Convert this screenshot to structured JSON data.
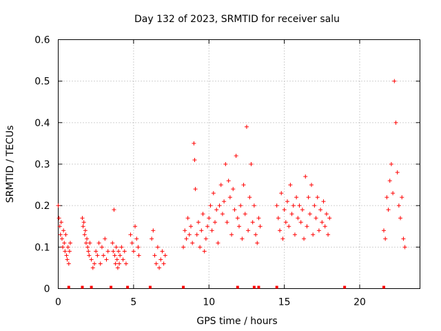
{
  "colors": {
    "series": "#ff0000",
    "grid": "#a0a0a0",
    "axis": "#000000"
  },
  "chart_data": {
    "type": "scatter",
    "title": "Day 132 of 2023, SRMTID for receiver salu",
    "xlabel": "GPS time / hours",
    "ylabel": "SRMTID / TECUs",
    "xlim": [
      0,
      24
    ],
    "ylim": [
      0,
      0.6
    ],
    "xticks": [
      0,
      5,
      10,
      15,
      20
    ],
    "xtick_labels": [
      "0",
      "5",
      "10",
      "15",
      "20"
    ],
    "yticks": [
      0,
      0.1,
      0.2,
      0.3,
      0.4,
      0.5,
      0.6
    ],
    "ytick_labels": [
      "0",
      "0.1",
      "0.2",
      "0.3",
      "0.4",
      "0.5",
      "0.6"
    ],
    "grid": true,
    "marker": "plus",
    "series": [
      {
        "name": "SRMTID",
        "x": [
          0.0,
          0.05,
          0.1,
          0.15,
          0.2,
          0.25,
          0.3,
          0.35,
          0.4,
          0.45,
          0.5,
          0.55,
          0.6,
          0.65,
          0.7,
          0.75,
          0.8,
          1.6,
          1.65,
          1.7,
          1.75,
          1.8,
          1.85,
          1.9,
          1.95,
          2.0,
          2.05,
          2.1,
          2.2,
          2.3,
          2.4,
          2.5,
          2.6,
          2.7,
          2.8,
          2.9,
          3.0,
          3.1,
          3.2,
          3.3,
          3.6,
          3.65,
          3.7,
          3.75,
          3.8,
          3.85,
          3.9,
          3.95,
          4.0,
          4.05,
          4.1,
          4.2,
          4.3,
          4.4,
          4.5,
          4.8,
          4.9,
          5.0,
          5.1,
          5.2,
          5.3,
          5.35,
          6.2,
          6.3,
          6.4,
          6.5,
          6.6,
          6.7,
          6.8,
          6.9,
          7.0,
          7.1,
          8.3,
          8.4,
          8.5,
          8.6,
          8.7,
          8.8,
          8.9,
          9.0,
          9.05,
          9.1,
          9.2,
          9.3,
          9.4,
          9.5,
          9.6,
          9.7,
          9.8,
          9.9,
          10.0,
          10.1,
          10.2,
          10.3,
          10.4,
          10.5,
          10.6,
          10.7,
          10.8,
          10.9,
          11.0,
          11.1,
          11.2,
          11.3,
          11.4,
          11.5,
          11.6,
          11.7,
          11.8,
          11.9,
          12.0,
          12.1,
          12.2,
          12.3,
          12.4,
          12.5,
          12.6,
          12.7,
          12.8,
          12.9,
          13.0,
          13.1,
          13.2,
          13.3,
          13.4,
          14.5,
          14.6,
          14.7,
          14.8,
          14.9,
          15.0,
          15.1,
          15.2,
          15.3,
          15.4,
          15.5,
          15.6,
          15.7,
          15.8,
          15.9,
          16.0,
          16.1,
          16.2,
          16.3,
          16.4,
          16.5,
          16.6,
          16.7,
          16.8,
          16.9,
          17.0,
          17.1,
          17.2,
          17.3,
          17.4,
          17.5,
          17.6,
          17.7,
          17.8,
          17.9,
          18.0,
          21.6,
          21.7,
          21.8,
          21.9,
          22.0,
          22.1,
          22.2,
          22.3,
          22.4,
          22.5,
          22.6,
          22.7,
          22.8,
          22.9,
          23.0
        ],
        "y": [
          0.2,
          0.17,
          0.15,
          0.13,
          0.16,
          0.12,
          0.1,
          0.14,
          0.11,
          0.09,
          0.13,
          0.08,
          0.07,
          0.1,
          0.06,
          0.09,
          0.11,
          0.17,
          0.15,
          0.16,
          0.13,
          0.14,
          0.11,
          0.12,
          0.1,
          0.09,
          0.08,
          0.11,
          0.07,
          0.05,
          0.06,
          0.09,
          0.08,
          0.11,
          0.06,
          0.1,
          0.08,
          0.12,
          0.07,
          0.09,
          0.11,
          0.09,
          0.19,
          0.08,
          0.06,
          0.1,
          0.07,
          0.05,
          0.09,
          0.06,
          0.08,
          0.1,
          0.07,
          0.09,
          0.06,
          0.13,
          0.11,
          0.09,
          0.15,
          0.12,
          0.1,
          0.08,
          0.12,
          0.14,
          0.08,
          0.06,
          0.1,
          0.05,
          0.07,
          0.09,
          0.06,
          0.08,
          0.1,
          0.14,
          0.12,
          0.17,
          0.13,
          0.15,
          0.11,
          0.35,
          0.31,
          0.24,
          0.13,
          0.16,
          0.1,
          0.14,
          0.18,
          0.09,
          0.12,
          0.15,
          0.17,
          0.2,
          0.14,
          0.23,
          0.16,
          0.19,
          0.11,
          0.2,
          0.25,
          0.18,
          0.21,
          0.3,
          0.16,
          0.26,
          0.22,
          0.13,
          0.24,
          0.19,
          0.32,
          0.17,
          0.15,
          0.2,
          0.12,
          0.25,
          0.18,
          0.39,
          0.14,
          0.22,
          0.3,
          0.16,
          0.2,
          0.13,
          0.11,
          0.17,
          0.15,
          0.2,
          0.17,
          0.14,
          0.23,
          0.12,
          0.19,
          0.16,
          0.21,
          0.15,
          0.25,
          0.18,
          0.2,
          0.13,
          0.22,
          0.17,
          0.2,
          0.16,
          0.19,
          0.12,
          0.27,
          0.15,
          0.22,
          0.18,
          0.25,
          0.13,
          0.2,
          0.17,
          0.22,
          0.14,
          0.19,
          0.16,
          0.21,
          0.15,
          0.18,
          0.13,
          0.17,
          0.14,
          0.12,
          0.22,
          0.19,
          0.26,
          0.3,
          0.23,
          0.5,
          0.4,
          0.28,
          0.2,
          0.17,
          0.22,
          0.12,
          0.1
        ]
      }
    ],
    "coverage_gaps_x": [
      0.7,
      1.6,
      2.2,
      3.5,
      4.6,
      6.1,
      8.3,
      11.9,
      13.0,
      13.3,
      14.5,
      19.0,
      21.6
    ]
  }
}
